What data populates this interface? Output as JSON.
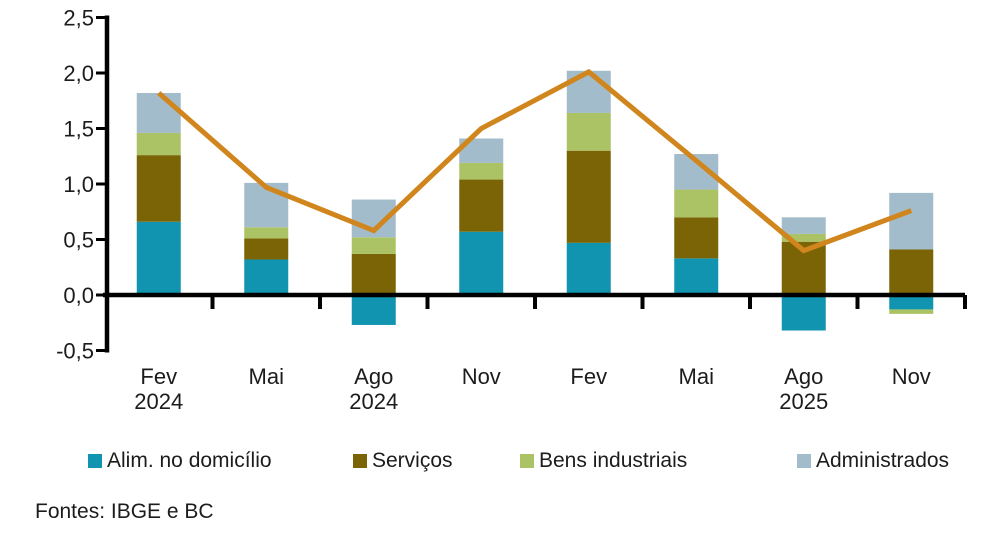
{
  "chart_data": {
    "type": "bar",
    "stacked": true,
    "categories": [
      "Fev 2024",
      "Mai",
      "Ago 2024",
      "Nov",
      "Fev",
      "Mai",
      "Ago 2025",
      "Nov"
    ],
    "category_label_lines": [
      [
        "Fev",
        "2024"
      ],
      [
        "Mai"
      ],
      [
        "Ago",
        "2024"
      ],
      [
        "Nov"
      ],
      [
        "Fev"
      ],
      [
        "Mai"
      ],
      [
        "Ago",
        "2025"
      ],
      [
        "Nov"
      ]
    ],
    "series": [
      {
        "name": "Alim. no domicílio",
        "color": "#1194B0",
        "values": [
          0.66,
          0.32,
          -0.27,
          0.57,
          0.47,
          0.33,
          -0.32,
          -0.13
        ]
      },
      {
        "name": "Serviços",
        "color": "#7A6405",
        "values": [
          0.6,
          0.19,
          0.37,
          0.47,
          0.83,
          0.37,
          0.48,
          0.41
        ]
      },
      {
        "name": "Bens industriais",
        "color": "#ABC364",
        "values": [
          0.2,
          0.1,
          0.15,
          0.15,
          0.34,
          0.25,
          0.07,
          -0.04
        ]
      },
      {
        "name": "Administrados",
        "color": "#A3BCCB",
        "values": [
          0.36,
          0.4,
          0.34,
          0.22,
          0.38,
          0.32,
          0.15,
          0.51
        ]
      }
    ],
    "line_series": {
      "name": "",
      "color": "#D0861C",
      "values": [
        1.82,
        0.97,
        0.58,
        1.5,
        2.01,
        1.21,
        0.4,
        0.76
      ]
    },
    "y_axis": {
      "ticks": [
        "2,5",
        "2,0",
        "1,5",
        "1,0",
        "0,5",
        "0,0",
        "-0,5"
      ],
      "tick_values": [
        2.5,
        2.0,
        1.5,
        1.0,
        0.5,
        0.0,
        -0.5
      ],
      "min": -0.5,
      "max": 2.5
    },
    "grid": false,
    "legend_position": "bottom"
  },
  "source_note": "Fontes: IBGE e BC",
  "colors": {
    "axis": "#000000",
    "text": "#1c1c1c",
    "background": "#ffffff"
  }
}
